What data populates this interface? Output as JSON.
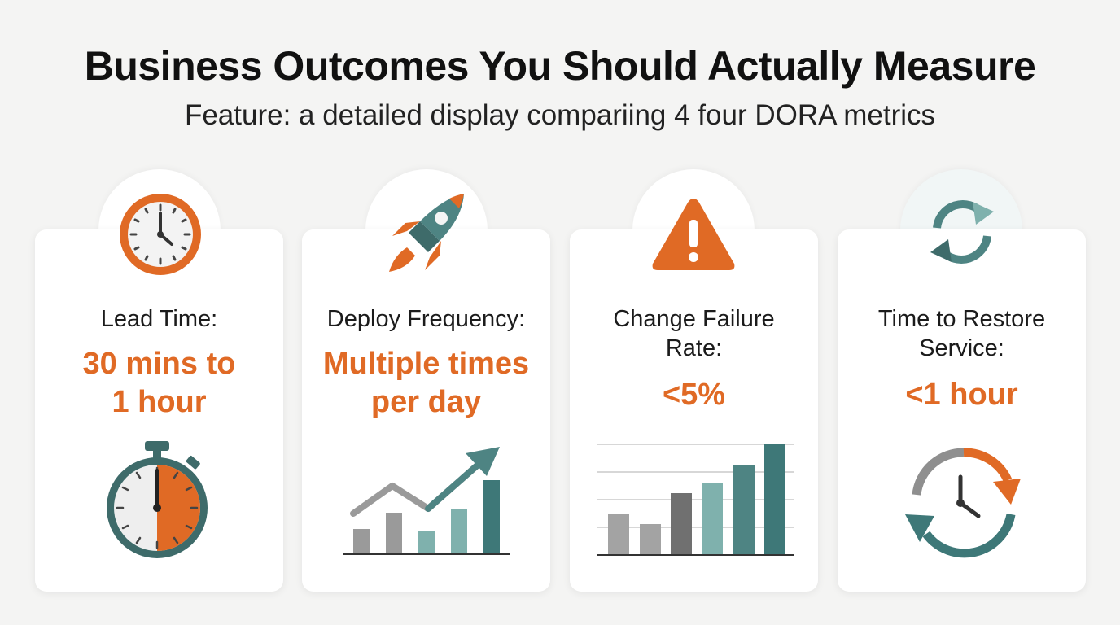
{
  "header": {
    "title": "Business Outcomes You Should Actually Measure",
    "subtitle": "Feature: a detailed display compariing 4 four DORA metrics"
  },
  "colors": {
    "accent": "#e06a25",
    "teal": "#3f7f7f",
    "teal_light": "#7fb1ad",
    "gray": "#9a9a9a",
    "card": "#ffffff",
    "background": "#f4f4f3"
  },
  "metrics": [
    {
      "label": "Lead Time:",
      "value_lines": [
        "30 mins to",
        "1 hour"
      ],
      "top_icon": "clock-icon",
      "bottom_icon": "stopwatch-icon"
    },
    {
      "label": "Deploy Frequency:",
      "value_lines": [
        "Multiple times",
        "per day"
      ],
      "top_icon": "rocket-icon",
      "bottom_icon": "trend-chart-icon"
    },
    {
      "label_lines": [
        "Change Failure",
        "Rate:"
      ],
      "value_lines": [
        "<5%"
      ],
      "top_icon": "warning-icon",
      "bottom_icon": "bar-chart-icon"
    },
    {
      "label_lines": [
        "Time to Restore",
        "Service:"
      ],
      "value_lines": [
        "<1 hour"
      ],
      "top_icon": "refresh-icon",
      "bottom_icon": "clock-cycle-icon"
    }
  ]
}
